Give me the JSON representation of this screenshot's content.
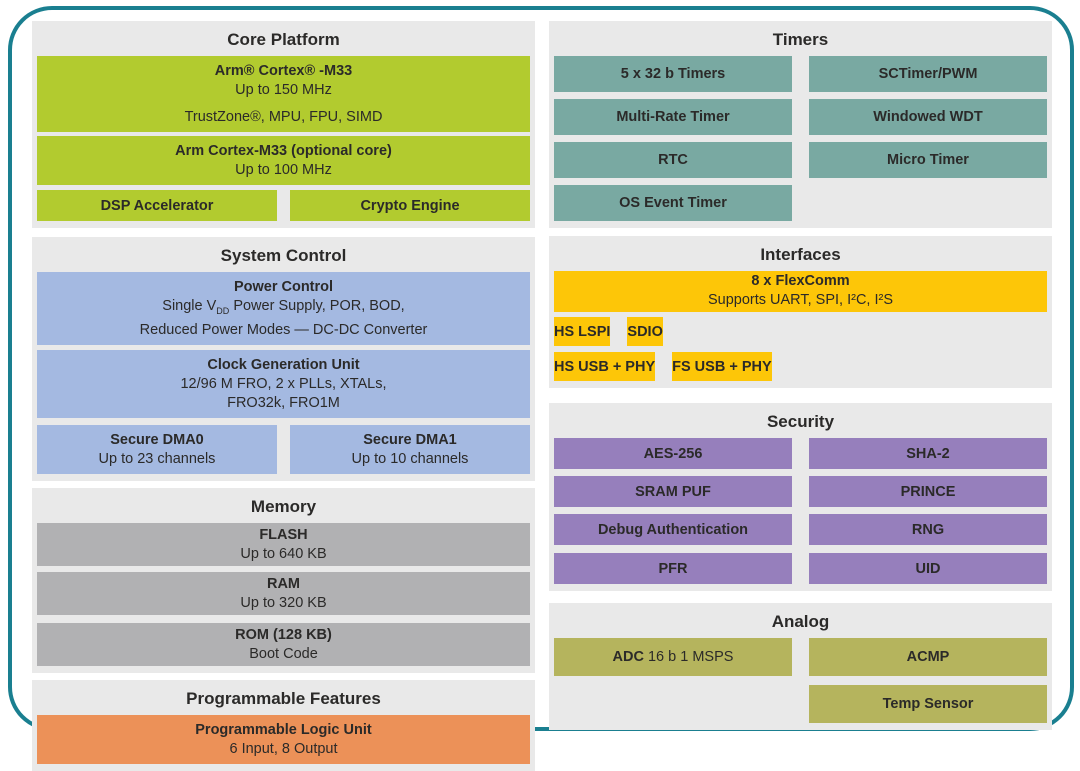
{
  "palette": {
    "border_teal": "#1a7f90",
    "panel_gray": "#e9e9e9",
    "core_green": "#b2cb2f",
    "system_blue": "#a4b9e1",
    "memory_gray": "#b1b1b3",
    "programmable_orange": "#ec9158",
    "timers_teal": "#79a9a2",
    "interfaces_yellow": "#fdc608",
    "security_purple": "#967fbc",
    "analog_olive": "#b5b45d",
    "text": "#2b2a29"
  },
  "core_platform": {
    "title": "Core Platform",
    "cpu_main": {
      "title": "Arm® Cortex® -M33",
      "subtitle": "Up to 150 MHz",
      "features": "TrustZone®, MPU, FPU, SIMD"
    },
    "cpu_optional": {
      "title": "Arm Cortex-M33 (optional core)",
      "subtitle": "Up to 100 MHz"
    },
    "dsp": "DSP Accelerator",
    "crypto": "Crypto Engine"
  },
  "system_control": {
    "title": "System Control",
    "power": {
      "title": "Power Control",
      "line1_pre": "Single V",
      "line1_sub": "DD",
      "line1_post": " Power Supply, POR, BOD,",
      "line2": "Reduced Power Modes — DC-DC Converter"
    },
    "clock": {
      "title": "Clock Generation Unit",
      "line1": "12/96 M FRO, 2 x PLLs, XTALs,",
      "line2": "FRO32k, FRO1M"
    },
    "dma0": {
      "title": "Secure DMA0",
      "subtitle": "Up to 23 channels"
    },
    "dma1": {
      "title": "Secure DMA1",
      "subtitle": "Up to 10 channels"
    }
  },
  "memory": {
    "title": "Memory",
    "flash": {
      "title": "FLASH",
      "subtitle": "Up to 640 KB"
    },
    "ram": {
      "title": "RAM",
      "subtitle": "Up to 320 KB"
    },
    "rom": {
      "title": "ROM (128 KB)",
      "subtitle": "Boot Code"
    }
  },
  "programmable_features": {
    "title": "Programmable Features",
    "plu": {
      "title": "Programmable Logic Unit",
      "subtitle": "6 Input, 8 Output"
    }
  },
  "timers": {
    "title": "Timers",
    "left": [
      "5 x 32 b Timers",
      "Multi-Rate Timer",
      "RTC",
      "OS Event Timer"
    ],
    "right": [
      "SCTimer/PWM",
      "Windowed WDT",
      "Micro Timer"
    ]
  },
  "interfaces": {
    "title": "Interfaces",
    "flexcomm": {
      "title": "8 x FlexComm",
      "subtitle": "Supports UART, SPI, I²C, I²S"
    },
    "row1": [
      "HS LSPI",
      "SDIO"
    ],
    "row2": [
      "HS USB + PHY",
      "FS USB + PHY"
    ]
  },
  "security": {
    "title": "Security",
    "left": [
      "AES-256",
      "SRAM PUF",
      "Debug Authentication",
      "PFR"
    ],
    "right": [
      "SHA-2",
      "PRINCE",
      "RNG",
      "UID"
    ]
  },
  "analog": {
    "title": "Analog",
    "adc_bold": "ADC",
    "adc_rest": " 16 b 1 MSPS",
    "acmp": "ACMP",
    "temp_sensor": "Temp Sensor"
  }
}
